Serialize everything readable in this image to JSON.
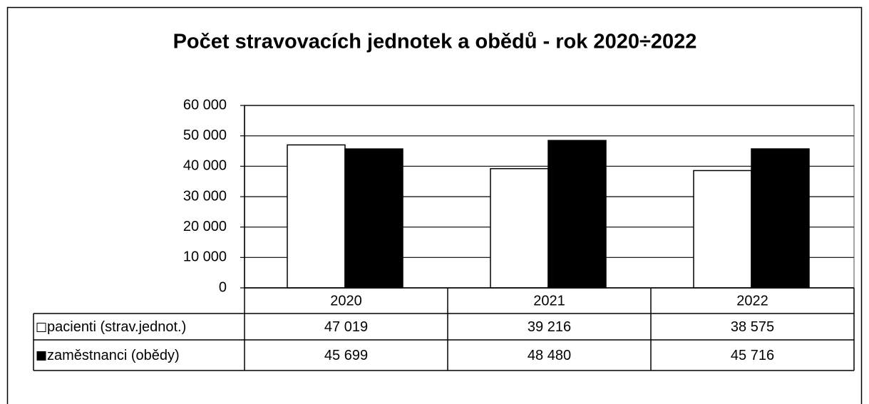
{
  "chart_data": {
    "type": "bar",
    "title": "Počet stravovacích jednotek a obědů - rok 2020÷2022",
    "categories": [
      "2020",
      "2021",
      "2022"
    ],
    "series": [
      {
        "name": "pacienti (strav.jednot.)",
        "color": "#ffffff",
        "values": [
          47019,
          39216,
          38575
        ],
        "value_labels": [
          "47 019",
          "39 216",
          "38 575"
        ]
      },
      {
        "name": "zaměstnanci (obědy)",
        "color": "#000000",
        "values": [
          45699,
          48480,
          45716
        ],
        "value_labels": [
          "45 699",
          "48 480",
          "45 716"
        ]
      }
    ],
    "ylim": [
      0,
      60000
    ],
    "yticks": [
      {
        "value": 0,
        "label": "0"
      },
      {
        "value": 10000,
        "label": "10 000"
      },
      {
        "value": 20000,
        "label": "20 000"
      },
      {
        "value": 30000,
        "label": "30 000"
      },
      {
        "value": 40000,
        "label": "40 000"
      },
      {
        "value": 50000,
        "label": "50 000"
      },
      {
        "value": 60000,
        "label": "60 000"
      }
    ],
    "grid": true
  }
}
